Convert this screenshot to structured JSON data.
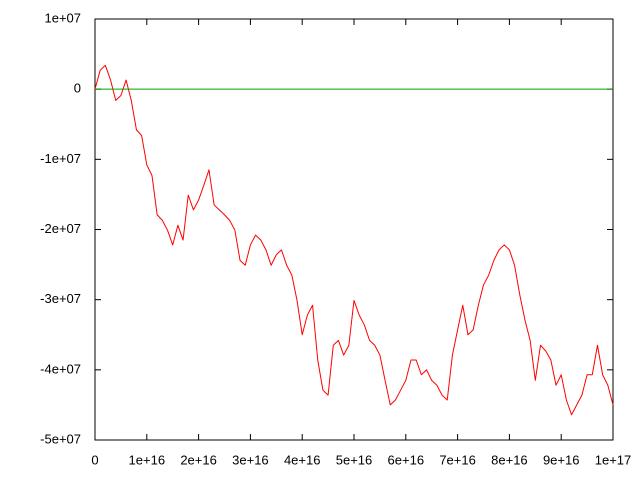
{
  "chart_data": {
    "type": "line",
    "xlim": [
      0,
      1e+17
    ],
    "xticks": [
      0,
      {
        "value": 1e+16,
        "label": "1e+16"
      },
      {
        "value": 2e+16,
        "label": "2e+16"
      },
      {
        "value": 3e+16,
        "label": "3e+16"
      },
      {
        "value": 4e+16,
        "label": "4e+16"
      },
      {
        "value": 5e+16,
        "label": "5e+16"
      },
      {
        "value": 6e+16,
        "label": "6e+16"
      },
      {
        "value": 7e+16,
        "label": "7e+16"
      },
      {
        "value": 8e+16,
        "label": "8e+16"
      },
      {
        "value": 9e+16,
        "label": "9e+16"
      },
      {
        "value": 1e+17,
        "label": "1e+17"
      }
    ],
    "ylim": [
      -50000000.0,
      10000000.0
    ],
    "yticks": [
      {
        "value": 10000000.0,
        "label": "1e+07"
      },
      0,
      {
        "value": -10000000.0,
        "label": "-1e+07"
      },
      {
        "value": -20000000.0,
        "label": "-2e+07"
      },
      {
        "value": -30000000.0,
        "label": "-3e+07"
      },
      {
        "value": -40000000.0,
        "label": "-4e+07"
      },
      {
        "value": -50000000.0,
        "label": "-5e+07"
      }
    ],
    "series": [
      {
        "color": "#ff0000",
        "x": [
          0,
          1000000000000000.0,
          2000000000000000.0,
          3000000000000000.0,
          4000000000000000.0,
          5000000000000000.0,
          6000000000000000.0,
          7000000000000000.0,
          8000000000000000.0,
          9000000000000000.0,
          1e+16,
          1.1e+16,
          1.2e+16,
          1.3e+16,
          1.4e+16,
          1.5e+16,
          1.6e+16,
          1.7e+16,
          1.8e+16,
          1.9e+16,
          2e+16,
          2.1e+16,
          2.2e+16,
          2.3e+16,
          2.4e+16,
          2.5e+16,
          2.6e+16,
          2.7e+16,
          2.8e+16,
          2.9e+16,
          3e+16,
          3.1e+16,
          3.2e+16,
          3.3e+16,
          3.4e+16,
          3.5e+16,
          3.6e+16,
          3.7e+16,
          3.8e+16,
          3.9e+16,
          4e+16,
          4.1e+16,
          4.2e+16,
          4.3e+16,
          4.4e+16,
          4.5e+16,
          4.6e+16,
          4.7e+16,
          4.8e+16,
          4.9e+16,
          5e+16,
          5.1e+16,
          5.2e+16,
          5.3e+16,
          5.4e+16,
          5.5e+16,
          5.6e+16,
          5.7e+16,
          5.8e+16,
          5.9e+16,
          6e+16,
          6.1e+16,
          6.2e+16,
          6.3e+16,
          6.4e+16,
          6.5e+16,
          6.6e+16,
          6.7e+16,
          6.8e+16,
          6.9e+16,
          7e+16,
          7.1e+16,
          7.2e+16,
          7.3e+16,
          7.4e+16,
          7.5e+16,
          7.6e+16,
          7.7e+16,
          7.8e+16,
          7.9e+16,
          8e+16,
          8.1e+16,
          8.2e+16,
          8.3e+16,
          8.4e+16,
          8.5e+16,
          8.6e+16,
          8.7e+16,
          8.8e+16,
          8.9e+16,
          9e+16,
          9.1e+16,
          9.2e+16,
          9.3e+16,
          9.4e+16,
          9.5e+16,
          9.6e+16,
          9.7e+16,
          9.8e+16,
          9.9e+16,
          1e+17
        ],
        "values": [
          0,
          2700000.0,
          3400000.0,
          1300000.0,
          -1600000.0,
          -900000.0,
          1300000.0,
          -1600000.0,
          -5800000.0,
          -6600000.0,
          -10800000.0,
          -12300000.0,
          -17900000.0,
          -18700000.0,
          -20100000.0,
          -22200000.0,
          -19400000.0,
          -21500000.0,
          -15100000.0,
          -17200000.0,
          -15800000.0,
          -13700000.0,
          -11500000.0,
          -16500000.0,
          -17200000.0,
          -17900000.0,
          -18700000.0,
          -20100000.0,
          -24400000.0,
          -25100000.0,
          -22200000.0,
          -20800000.0,
          -21500000.0,
          -22900000.0,
          -25100000.0,
          -23600000.0,
          -22900000.0,
          -25100000.0,
          -26500000.0,
          -30100000.0,
          -35000000.0,
          -32200000.0,
          -30800000.0,
          -38600000.0,
          -42900000.0,
          -43600000.0,
          -36500000.0,
          -35800000.0,
          -37900000.0,
          -36500000.0,
          -30100000.0,
          -32200000.0,
          -33600000.0,
          -35800000.0,
          -36500000.0,
          -37900000.0,
          -41500000.0,
          -45000000.0,
          -44300000.0,
          -42900000.0,
          -41500000.0,
          -38600000.0,
          -38600000.0,
          -40700000.0,
          -40000000.0,
          -41500000.0,
          -42200000.0,
          -43600000.0,
          -44300000.0,
          -37900000.0,
          -34300000.0,
          -30800000.0,
          -35000000.0,
          -34300000.0,
          -30800000.0,
          -27900000.0,
          -26500000.0,
          -24400000.0,
          -22900000.0,
          -22200000.0,
          -22900000.0,
          -25100000.0,
          -29300000.0,
          -32900000.0,
          -35800000.0,
          -41500000.0,
          -36500000.0,
          -37300000.0,
          -38600000.0,
          -42200000.0,
          -40700000.0,
          -44300000.0,
          -46400000.0,
          -45000000.0,
          -43600000.0,
          -40700000.0,
          -40700000.0,
          -36500000.0,
          -40700000.0,
          -42200000.0,
          -45000000.0
        ]
      },
      {
        "color": "#00a000",
        "x": [
          0,
          1e+17
        ],
        "values": [
          0,
          0
        ]
      }
    ]
  }
}
